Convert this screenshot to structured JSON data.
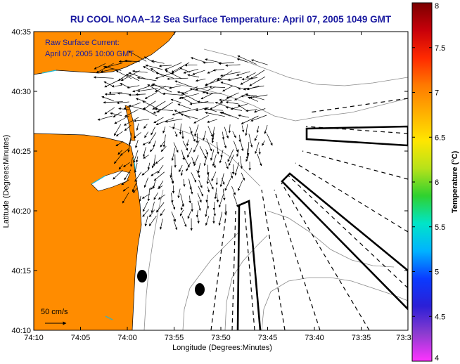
{
  "chart_data": {
    "type": "map",
    "title": "RU COOL  NOAA−12  Sea Surface Temperature:  April 07, 2005 1049 GMT",
    "xlabel": "Longitude (Degrees:Minutes)",
    "ylabel": "Latitude (Degrees:Minutes)",
    "annotation_lines": [
      "Raw Surface Current:",
      "April 07, 2005 10:00 GMT"
    ],
    "x_ticks": [
      "74:10",
      "74:05",
      "74:00",
      "73:55",
      "73:50",
      "73:45",
      "73:40",
      "73:35",
      "73:3"
    ],
    "y_ticks": [
      "40:35",
      "40:30",
      "40:25",
      "40:20",
      "40:15",
      "40:10"
    ],
    "xlim_minutes": [
      10,
      -30
    ],
    "ylim_minutes": [
      10,
      35
    ],
    "scale_label": "50 cm/s",
    "colorbar": {
      "label": "Temperature (°C)",
      "min": 4,
      "max": 8,
      "ticks": [
        "8",
        "7.5",
        "7",
        "6.5",
        "6",
        "5.5",
        "5",
        "4.5",
        "4"
      ],
      "colors": [
        "#ff33ff",
        "#8c3ccf",
        "#2b1fd6",
        "#0a3bff",
        "#00b3ff",
        "#00e5c8",
        "#2fd12f",
        "#b7e21a",
        "#ffe600",
        "#ffb000",
        "#ff7a00",
        "#ff2a00",
        "#c8000a",
        "#7a0000"
      ]
    },
    "land_color": "#ff8c00"
  }
}
